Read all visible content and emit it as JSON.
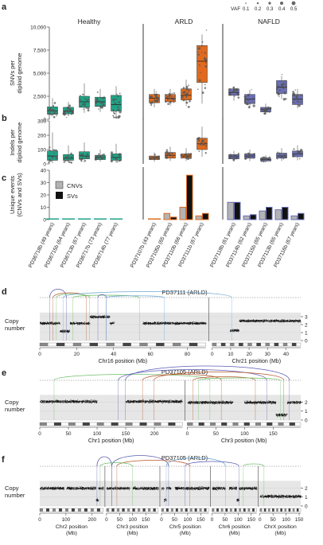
{
  "panel_labels": {
    "a": "a",
    "b": "b",
    "c": "c",
    "d": "d",
    "e": "e",
    "f": "f"
  },
  "vaf_legend": {
    "label": "VAF",
    "ticks": [
      "0.1",
      "0.2",
      "0.3",
      "0.4",
      "0.5"
    ]
  },
  "groups": [
    "Healthy",
    "ARLD",
    "NAFLD"
  ],
  "samples": [
    "PD36718b (49 years)",
    "PD36715b (64 years)",
    "PD36713b (67 years)",
    "PD36717b (73 years)",
    "PD36714b (77 years)",
    "PD37107b (43 years)",
    "PD37105b (65 years)",
    "PD37110b (66 years)",
    "PD37111b (67 years)",
    "PD37118b (61 years)",
    "PD37114b (62 years)",
    "PD37115b (65 years)",
    "PD37113b (65 years)",
    "PD37116b (67 years)"
  ],
  "colors": {
    "Healthy": "#1fa385",
    "ARLD": "#e06a1f",
    "NAFLD": "#6a6fb8",
    "CNV": "#b3b3b3",
    "SV": "#111111",
    "arc_purple": "#5b5bb3",
    "arc_brown": "#b4572c",
    "arc_green": "#6fbf6a",
    "arc_blue": "#6fa9d3"
  },
  "chart_data": [
    {
      "panel": "a",
      "type": "box",
      "ylabel": "SNVs per diploid genome",
      "ylim": [
        0,
        10000
      ],
      "yticks": [
        "0",
        "2,500",
        "5,000",
        "7,500",
        "10,000"
      ],
      "ytick_values": [
        0,
        2500,
        5000,
        7500,
        10000
      ],
      "boxes": [
        {
          "q1": 550,
          "med": 900,
          "q3": 1350,
          "lo": 300,
          "hi": 2300
        },
        {
          "q1": 600,
          "med": 900,
          "q3": 1300,
          "lo": 350,
          "hi": 1900
        },
        {
          "q1": 1300,
          "med": 1900,
          "q3": 2500,
          "lo": 700,
          "hi": 3900
        },
        {
          "q1": 1400,
          "med": 1900,
          "q3": 2400,
          "lo": 800,
          "hi": 3300
        },
        {
          "q1": 900,
          "med": 1600,
          "q3": 2600,
          "lo": 350,
          "hi": 3600
        },
        {
          "q1": 1800,
          "med": 2300,
          "q3": 2700,
          "lo": 1300,
          "hi": 3300
        },
        {
          "q1": 1900,
          "med": 2300,
          "q3": 2700,
          "lo": 1500,
          "hi": 3300
        },
        {
          "q1": 2100,
          "med": 2600,
          "q3": 3300,
          "lo": 1600,
          "hi": 4300
        },
        {
          "q1": 4000,
          "med": 6300,
          "q3": 8000,
          "lo": 1700,
          "hi": 9200
        },
        {
          "q1": 2600,
          "med": 2900,
          "q3": 3300,
          "lo": 2000,
          "hi": 3600
        },
        {
          "q1": 1700,
          "med": 2200,
          "q3": 2700,
          "lo": 1200,
          "hi": 3200
        },
        {
          "q1": 800,
          "med": 1100,
          "q3": 1300,
          "lo": 600,
          "hi": 1700
        },
        {
          "q1": 2800,
          "med": 3500,
          "q3": 4200,
          "lo": 2200,
          "hi": 4700
        },
        {
          "q1": 1600,
          "med": 2200,
          "q3": 2700,
          "lo": 1200,
          "hi": 3300
        }
      ]
    },
    {
      "panel": "b",
      "type": "box",
      "ylabel": "Indels per diploid genome",
      "ylim": [
        0,
        300
      ],
      "yticks": [
        "0",
        "100",
        "200",
        "300"
      ],
      "ytick_values": [
        0,
        100,
        200,
        300
      ],
      "boxes": [
        {
          "q1": 25,
          "med": 55,
          "q3": 90,
          "lo": 5,
          "hi": 220
        },
        {
          "q1": 25,
          "med": 40,
          "q3": 65,
          "lo": 10,
          "hi": 130
        },
        {
          "q1": 35,
          "med": 55,
          "q3": 85,
          "lo": 10,
          "hi": 150
        },
        {
          "q1": 30,
          "med": 45,
          "q3": 60,
          "lo": 15,
          "hi": 100
        },
        {
          "q1": 25,
          "med": 45,
          "q3": 70,
          "lo": 10,
          "hi": 140
        },
        {
          "q1": 30,
          "med": 40,
          "q3": 55,
          "lo": 15,
          "hi": 80
        },
        {
          "q1": 40,
          "med": 60,
          "q3": 80,
          "lo": 20,
          "hi": 120
        },
        {
          "q1": 40,
          "med": 55,
          "q3": 70,
          "lo": 20,
          "hi": 110
        },
        {
          "q1": 100,
          "med": 140,
          "q3": 180,
          "lo": 50,
          "hi": 260
        },
        {
          "q1": 35,
          "med": 50,
          "q3": 65,
          "lo": 15,
          "hi": 90
        },
        {
          "q1": 40,
          "med": 55,
          "q3": 70,
          "lo": 20,
          "hi": 100
        },
        {
          "q1": 20,
          "med": 30,
          "q3": 40,
          "lo": 10,
          "hi": 60
        },
        {
          "q1": 40,
          "med": 55,
          "q3": 75,
          "lo": 20,
          "hi": 110
        },
        {
          "q1": 50,
          "med": 70,
          "q3": 90,
          "lo": 25,
          "hi": 130
        }
      ]
    },
    {
      "panel": "c",
      "type": "bar",
      "ylabel": "Unique events (CNVs and SVs)",
      "ylim": [
        0,
        40
      ],
      "yticks": [
        "0",
        "10",
        "20",
        "30",
        "40"
      ],
      "ytick_values": [
        0,
        10,
        20,
        30,
        40
      ],
      "legend": [
        "CNVs",
        "SVs"
      ],
      "series": [
        {
          "name": "CNVs",
          "values": [
            0,
            0,
            0,
            0,
            0,
            0,
            5,
            10,
            3,
            14,
            3,
            7,
            8,
            3
          ]
        },
        {
          "name": "SVs",
          "values": [
            0,
            0,
            0,
            0,
            0,
            0,
            2,
            36,
            5,
            14,
            4,
            10,
            10,
            5
          ]
        }
      ]
    },
    {
      "panel": "d",
      "type": "scatter",
      "title": "PD37111 (ARLD)",
      "ylabel": "Copy number",
      "yticks": [
        "0",
        "1",
        "2",
        "3"
      ],
      "ytick_values": [
        0,
        1,
        2,
        3
      ],
      "ylim": [
        0,
        4
      ],
      "chromosomes": [
        {
          "name": "Chr16",
          "length": 90,
          "ticks": [
            "0",
            "20",
            "40",
            "60",
            "80"
          ],
          "tick_values": [
            0,
            20,
            40,
            60,
            80
          ],
          "xlabel": "Chr16 position (Mb)"
        },
        {
          "name": "Chr21",
          "length": 48,
          "ticks": [
            "0",
            "10",
            "20",
            "30",
            "40"
          ],
          "tick_values": [
            0,
            10,
            20,
            30,
            40
          ],
          "xlabel": "Chr21 position (Mb)"
        }
      ]
    },
    {
      "panel": "e",
      "type": "scatter",
      "title": "PD37105 (ARLD)",
      "ylabel": "Copy number",
      "yticks": [
        "0",
        "1",
        "2"
      ],
      "ytick_values": [
        0,
        1,
        2
      ],
      "ylim": [
        0,
        3.2
      ],
      "chromosomes": [
        {
          "name": "Chr1",
          "length": 249,
          "ticks": [
            "0",
            "50",
            "100",
            "150",
            "200"
          ],
          "tick_values": [
            0,
            50,
            100,
            150,
            200
          ],
          "xlabel": "Chr1 position (Mb)"
        },
        {
          "name": "Chr3",
          "length": 198,
          "ticks": [
            "0",
            "50",
            "100",
            "150"
          ],
          "tick_values": [
            0,
            50,
            100,
            150
          ],
          "xlabel": "Chr3 position (Mb)"
        }
      ]
    },
    {
      "panel": "f",
      "type": "scatter",
      "title": "PD37105 (ARLD)",
      "ylabel": "Copy number",
      "yticks": [
        "0",
        "1",
        "2"
      ],
      "ytick_values": [
        0,
        1,
        2
      ],
      "ylim": [
        0,
        3.2
      ],
      "chromosomes": [
        {
          "name": "Chr2",
          "length": 243,
          "ticks": [
            "0",
            "100",
            "200"
          ],
          "tick_values": [
            0,
            100,
            200
          ],
          "xlabel": "Chr2 position (Mb)"
        },
        {
          "name": "Chr3",
          "length": 198,
          "ticks": [
            "0",
            "50",
            "100",
            "150"
          ],
          "tick_values": [
            0,
            50,
            100,
            150
          ],
          "xlabel": "Chr3 position (Mb)"
        },
        {
          "name": "Chr5",
          "length": 181,
          "ticks": [
            "0",
            "50",
            "100",
            "150"
          ],
          "tick_values": [
            0,
            50,
            100,
            150
          ],
          "xlabel": "Chr5 position (Mb)"
        },
        {
          "name": "Chr6",
          "length": 171,
          "ticks": [
            "0",
            "50",
            "100",
            "150"
          ],
          "tick_values": [
            0,
            50,
            100,
            150
          ],
          "xlabel": "Chr6 position (Mb)"
        },
        {
          "name": "ChrX",
          "length": 156,
          "ticks": [
            "0",
            "50",
            "100",
            "150"
          ],
          "tick_values": [
            0,
            50,
            100,
            150
          ],
          "xlabel": "ChrX position (Mb)"
        }
      ]
    }
  ]
}
